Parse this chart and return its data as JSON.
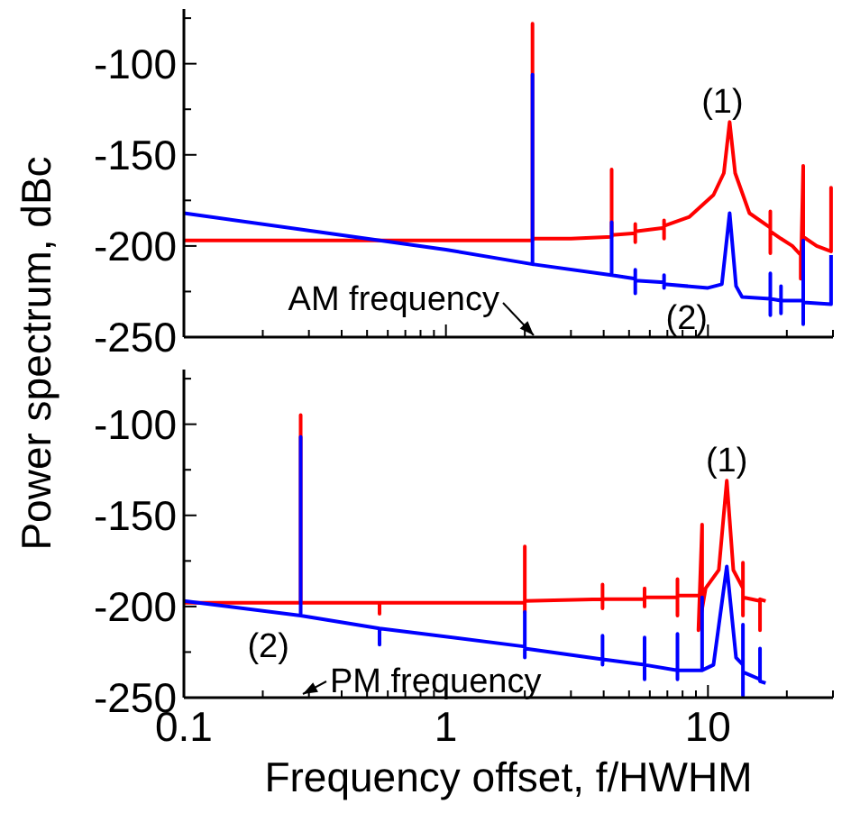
{
  "chart_data": [
    {
      "type": "line",
      "ylabel": "Power spectrum, dBc",
      "log": "x",
      "xlim": [
        0.1,
        30
      ],
      "ylim": [
        -250,
        -70
      ],
      "xticks": [
        0.1,
        {
          "value": 0.2,
          "label": null
        },
        {
          "value": 0.3,
          "label": null
        },
        {
          "value": 0.4,
          "label": null
        },
        {
          "value": 0.5,
          "label": null
        },
        {
          "value": 0.6,
          "label": null
        },
        {
          "value": 0.7,
          "label": null
        },
        {
          "value": 0.8,
          "label": null
        },
        {
          "value": 0.9,
          "label": null
        },
        1,
        {
          "value": 2,
          "label": null
        },
        {
          "value": 3,
          "label": null
        },
        {
          "value": 4,
          "label": null
        },
        {
          "value": 5,
          "label": null
        },
        {
          "value": 6,
          "label": null
        },
        {
          "value": 7,
          "label": null
        },
        {
          "value": 8,
          "label": null
        },
        {
          "value": 9,
          "label": null
        },
        10,
        {
          "value": 20,
          "label": null
        },
        {
          "value": 30,
          "label": null
        }
      ],
      "yticks": [
        -250,
        {
          "value": -225,
          "label": null
        },
        -200,
        {
          "value": -175,
          "label": null
        },
        -150,
        {
          "value": -125,
          "label": null
        },
        -100,
        {
          "value": -75,
          "label": null
        }
      ],
      "tick_labels": "y",
      "grid": false,
      "series": [
        {
          "color": "#ff0000",
          "x": [
            0.1,
            1,
            2.1,
            2.14,
            2.14,
            2.14,
            3,
            4.29,
            4.29,
            4.29,
            5.28,
            5.28,
            5.28,
            5.28,
            6.8,
            6.8,
            6.8,
            6.8,
            8.5,
            10.5,
            11.5,
            12.1,
            12.7,
            14.4,
            17.3,
            17.3,
            17.3,
            17.3,
            19,
            21,
            22.6,
            22.6,
            23.1,
            23.1,
            26,
            29.5,
            29.5,
            29.5
          ],
          "values": [
            -197,
            -197,
            -197,
            -197,
            -78,
            -196,
            -196,
            -195,
            -158,
            -194,
            -193,
            -188,
            -198,
            -192,
            -190,
            -186,
            -196,
            -189,
            -184,
            -172,
            -160,
            -132,
            -160,
            -182,
            -190,
            -181,
            -204,
            -192,
            -196,
            -200,
            -205,
            -218,
            -156,
            -195,
            -200,
            -203,
            -168,
            -203
          ]
        },
        {
          "color": "#0000ff",
          "x": [
            0.1,
            1,
            2.14,
            2.14,
            2.14,
            4.29,
            4.29,
            4.29,
            5.28,
            5.28,
            5.28,
            5.28,
            6.8,
            6.8,
            6.8,
            6.8,
            10,
            11.3,
            12.1,
            12.8,
            13.5,
            17.3,
            17.3,
            17.3,
            17.3,
            19,
            19,
            19,
            19,
            23.1,
            23.1,
            23.1,
            23.1,
            29.5,
            29.5
          ],
          "values": [
            -182,
            -202,
            -210,
            -106,
            -210,
            -216,
            -187,
            -216,
            -218,
            -213,
            -226,
            -219,
            -220,
            -216,
            -223,
            -221,
            -223,
            -221,
            -182,
            -222,
            -228,
            -229,
            -215,
            -238,
            -229,
            -230,
            -222,
            -237,
            -230,
            -230,
            -243,
            -197,
            -231,
            -232,
            -205
          ]
        }
      ],
      "annotations": [
        {
          "text": "(1)",
          "x": 12.1,
          "y": -132
        },
        {
          "text": "(2)",
          "x": 8.3,
          "y": -222
        },
        "AM frequency"
      ]
    },
    {
      "type": "line",
      "xlabel": "Frequency offset, f/HWHM",
      "log": "x",
      "xlim": [
        0.1,
        30
      ],
      "ylim": [
        -250,
        -70
      ],
      "xticks": [
        0.1,
        {
          "value": 0.2,
          "label": null
        },
        {
          "value": 0.3,
          "label": null
        },
        {
          "value": 0.4,
          "label": null
        },
        {
          "value": 0.5,
          "label": null
        },
        {
          "value": 0.6,
          "label": null
        },
        {
          "value": 0.7,
          "label": null
        },
        {
          "value": 0.8,
          "label": null
        },
        {
          "value": 0.9,
          "label": null
        },
        1,
        {
          "value": 2,
          "label": null
        },
        {
          "value": 3,
          "label": null
        },
        {
          "value": 4,
          "label": null
        },
        {
          "value": 5,
          "label": null
        },
        {
          "value": 6,
          "label": null
        },
        {
          "value": 7,
          "label": null
        },
        {
          "value": 8,
          "label": null
        },
        {
          "value": 9,
          "label": null
        },
        10,
        {
          "value": 20,
          "label": null
        },
        {
          "value": 30,
          "label": null
        }
      ],
      "yticks": [
        -250,
        {
          "value": -225,
          "label": null
        },
        -200,
        {
          "value": -175,
          "label": null
        },
        -150,
        {
          "value": -125,
          "label": null
        },
        -100,
        {
          "value": -75,
          "label": null
        }
      ],
      "grid": false,
      "series": [
        {
          "color": "#ff0000",
          "x": [
            0.1,
            0.279,
            0.279,
            0.279,
            0.558,
            0.558,
            0.558,
            2,
            2,
            2,
            2,
            3.96,
            3.96,
            3.96,
            3.96,
            5.73,
            5.73,
            5.73,
            5.73,
            7.65,
            7.65,
            7.65,
            7.65,
            9.5,
            9.5,
            9.2,
            9.8,
            11,
            11.8,
            12.5,
            13.6,
            13.6,
            13.6,
            13.6,
            15.8,
            15.8,
            15.8,
            16.6
          ],
          "values": [
            -198,
            -198,
            -95,
            -198,
            -198,
            -204,
            -198,
            -198,
            -167,
            -203,
            -197,
            -196,
            -188,
            -201,
            -196,
            -196,
            -190,
            -200,
            -195,
            -195,
            -185,
            -205,
            -194,
            -194,
            -155,
            -213,
            -190,
            -180,
            -131,
            -180,
            -190,
            -176,
            -205,
            -195,
            -197,
            -213,
            -196,
            -197
          ]
        },
        {
          "color": "#0000ff",
          "x": [
            0.1,
            0.279,
            0.279,
            0.279,
            0.558,
            0.558,
            0.558,
            2,
            2,
            2,
            2,
            3.96,
            3.96,
            3.96,
            3.96,
            5.73,
            5.73,
            5.73,
            5.73,
            7.65,
            7.65,
            7.65,
            7.65,
            9.5,
            9.5,
            9.5,
            10.5,
            11.8,
            12.8,
            13.6,
            13.6,
            13.6,
            13.6,
            15.8,
            15.8,
            15.8,
            16.6
          ],
          "values": [
            -197,
            -205,
            -107,
            -205,
            -212,
            -221,
            -212,
            -222,
            -203,
            -228,
            -223,
            -229,
            -216,
            -232,
            -229,
            -232,
            -217,
            -240,
            -232,
            -235,
            -215,
            -240,
            -235,
            -235,
            -195,
            -235,
            -232,
            -178,
            -228,
            -232,
            -210,
            -249,
            -236,
            -240,
            -223,
            -241,
            -242
          ]
        }
      ],
      "annotations": [
        {
          "text": "(1)",
          "x": 11.8,
          "y": -131
        },
        {
          "text": "(2)",
          "x": 0.21,
          "y": -202
        },
        "PM frequency"
      ]
    }
  ]
}
